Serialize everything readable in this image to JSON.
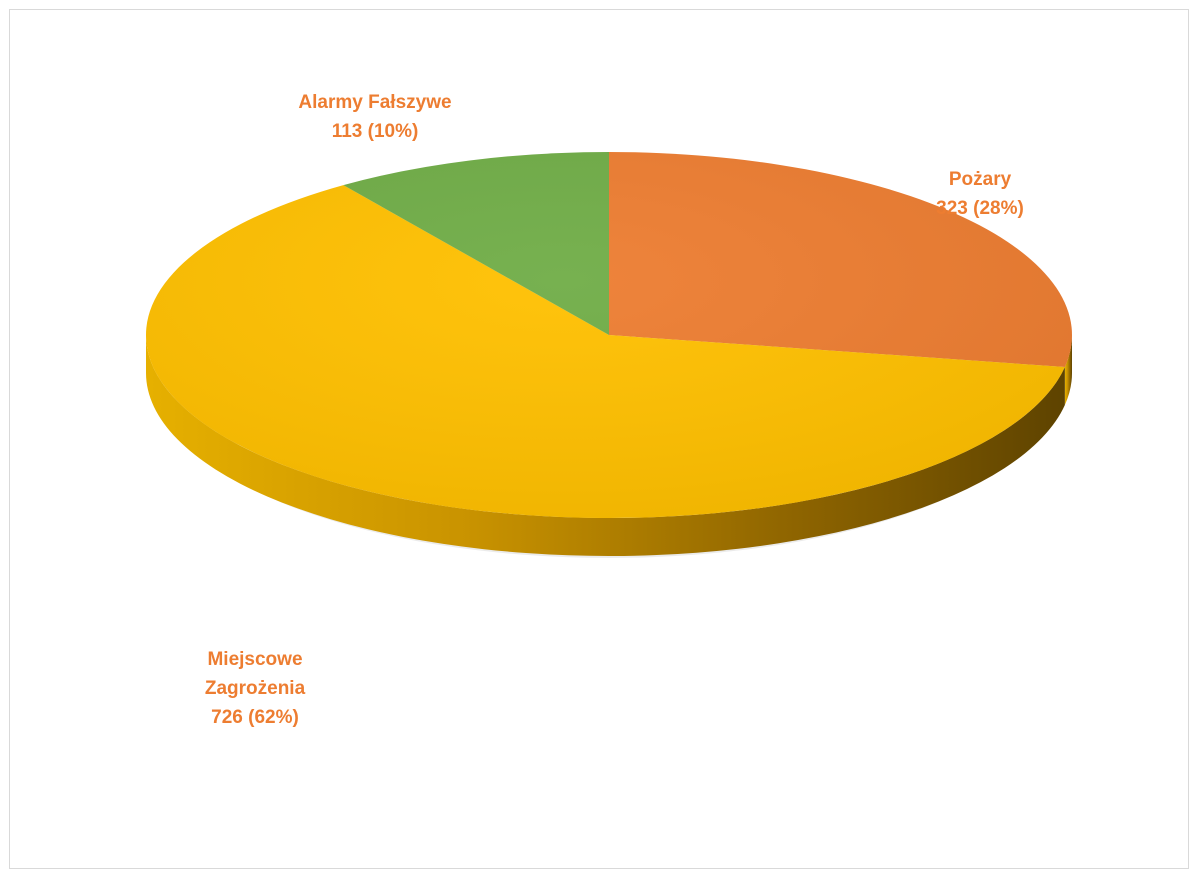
{
  "chart_data": {
    "type": "pie",
    "title": "",
    "style": "3d",
    "slices": [
      {
        "name": "Pożary",
        "value": 323,
        "percent": 28,
        "label_lines": [
          "Pożary",
          "323 (28%)"
        ],
        "color": "#ED7D31"
      },
      {
        "name": "Miejscowe Zagrożenia",
        "value": 726,
        "percent": 62,
        "label_lines": [
          "Miejscowe",
          "Zagrożenia",
          "726 (62%)"
        ],
        "color": "#FFC000"
      },
      {
        "name": "Alarmy Fałszywe",
        "value": 113,
        "percent": 10,
        "label_lines": [
          "Alarmy Fałszywe",
          "113 (10%)"
        ],
        "color": "#70AD47"
      }
    ],
    "label_color": "#ED7D31",
    "legend": "none"
  }
}
